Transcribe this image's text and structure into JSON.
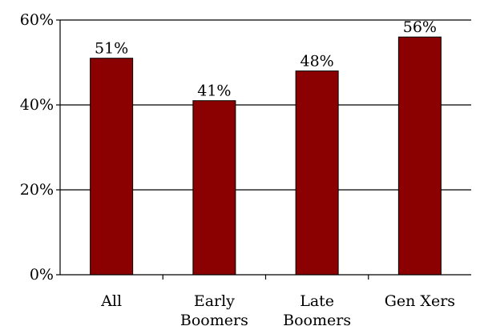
{
  "chart_data": {
    "type": "bar",
    "categories": [
      "All",
      "Early Boomers",
      "Late Boomers",
      "Gen Xers"
    ],
    "category_lines": [
      [
        "All"
      ],
      [
        "Early",
        "Boomers"
      ],
      [
        "Late",
        "Boomers"
      ],
      [
        "Gen Xers"
      ]
    ],
    "values": [
      51,
      41,
      48,
      56
    ],
    "data_labels": [
      "51%",
      "41%",
      "48%",
      "56%"
    ],
    "ylim": [
      0,
      60
    ],
    "yticks": [
      0,
      20,
      40,
      60
    ],
    "ytick_labels": [
      "0%",
      "20%",
      "40%",
      "60%"
    ],
    "grid": true,
    "bar_color": "#8b0000",
    "title": "",
    "xlabel": "",
    "ylabel": ""
  }
}
